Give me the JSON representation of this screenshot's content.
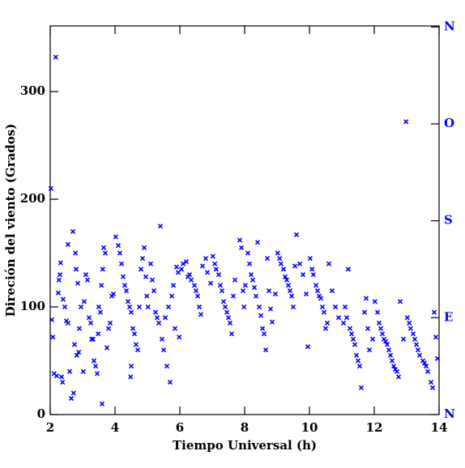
{
  "chart_data": {
    "type": "scatter",
    "xlabel": "Tiempo Universal (h)",
    "ylabel": "Direción del viento (Grados)",
    "color": "#0000ff",
    "marker": "x",
    "xlim": [
      2,
      14
    ],
    "ylim": [
      0,
      361
    ],
    "xticks": [
      2,
      4,
      6,
      8,
      10,
      12,
      14
    ],
    "yticks": [
      0,
      100,
      200,
      300
    ],
    "y2lim": [
      0,
      361
    ],
    "y2ticks": [
      {
        "value": 0,
        "label": "N"
      },
      {
        "value": 90,
        "label": "E"
      },
      {
        "value": 180,
        "label": "S"
      },
      {
        "value": 270,
        "label": "O"
      },
      {
        "value": 360,
        "label": "N"
      }
    ],
    "x": [
      2.02,
      2.17,
      2.05,
      2.08,
      2.12,
      2.2,
      2.25,
      2.3,
      2.32,
      2.27,
      2.4,
      2.45,
      2.5,
      2.55,
      2.35,
      2.38,
      2.6,
      2.65,
      2.72,
      2.55,
      2.78,
      2.7,
      2.8,
      2.85,
      2.9,
      2.75,
      2.82,
      2.88,
      2.95,
      3.02,
      3.05,
      3.1,
      3.15,
      3.2,
      3.25,
      3.28,
      3.32,
      3.35,
      3.4,
      3.45,
      3.48,
      3.5,
      3.55,
      3.58,
      3.62,
      3.65,
      3.7,
      3.6,
      3.75,
      3.8,
      3.85,
      3.9,
      3.95,
      4.02,
      4.1,
      4.15,
      4.2,
      4.25,
      4.3,
      4.35,
      4.4,
      4.45,
      4.5,
      4.55,
      4.6,
      4.65,
      4.5,
      4.48,
      4.7,
      4.75,
      4.8,
      4.85,
      4.9,
      4.95,
      4.98,
      5.02,
      5.4,
      5.1,
      5.15,
      5.2,
      5.25,
      5.3,
      5.35,
      5.45,
      5.5,
      5.7,
      5.6,
      5.65,
      5.75,
      5.8,
      5.9,
      5.95,
      5.55,
      5.85,
      5.98,
      6.05,
      6.1,
      6.2,
      6.25,
      6.3,
      6.35,
      6.45,
      6.5,
      6.55,
      6.6,
      6.65,
      6.7,
      6.8,
      6.85,
      6.95,
      7.02,
      7.08,
      7.12,
      7.2,
      7.25,
      7.3,
      7.35,
      7.4,
      7.45,
      7.5,
      7.55,
      7.6,
      7.65,
      7.7,
      7.85,
      7.9,
      7.95,
      7.98,
      8.02,
      8.4,
      8.1,
      8.15,
      8.2,
      8.25,
      8.3,
      8.35,
      8.45,
      8.5,
      8.55,
      8.6,
      8.65,
      8.7,
      8.75,
      8.8,
      8.85,
      8.95,
      9.02,
      9.08,
      9.12,
      9.2,
      9.25,
      9.3,
      9.35,
      9.4,
      9.45,
      9.5,
      9.55,
      9.6,
      9.7,
      9.8,
      9.9,
      9.95,
      10.02,
      10.08,
      10.12,
      10.2,
      10.25,
      10.3,
      10.35,
      10.4,
      10.45,
      10.5,
      10.55,
      10.6,
      10.7,
      10.8,
      10.9,
      11.05,
      11.1,
      11.15,
      11.2,
      11.25,
      11.3,
      11.35,
      11.4,
      11.45,
      11.5,
      11.55,
      11.6,
      11.7,
      11.75,
      11.8,
      11.85,
      11.95,
      12.02,
      12.1,
      12.15,
      12.2,
      12.25,
      12.3,
      12.35,
      12.4,
      12.45,
      12.5,
      12.55,
      12.6,
      12.65,
      12.7,
      12.75,
      12.8,
      12.9,
      12.98,
      13.02,
      13.08,
      13.12,
      13.2,
      13.25,
      13.3,
      13.35,
      13.4,
      13.5,
      13.55,
      13.6,
      13.65,
      13.75,
      13.8,
      13.85,
      13.9,
      13.95
    ],
    "values": [
      210,
      332,
      88,
      72,
      38,
      36,
      113,
      130,
      141,
      125,
      107,
      100,
      87,
      85,
      35,
      30,
      40,
      15,
      20,
      158,
      150,
      170,
      135,
      122,
      80,
      65,
      55,
      58,
      100,
      40,
      105,
      130,
      125,
      90,
      85,
      70,
      70,
      50,
      45,
      38,
      75,
      100,
      95,
      120,
      135,
      155,
      150,
      10,
      62,
      80,
      85,
      110,
      112,
      165,
      157,
      150,
      140,
      128,
      120,
      115,
      105,
      100,
      95,
      80,
      75,
      65,
      45,
      35,
      60,
      100,
      135,
      145,
      155,
      128,
      110,
      100,
      175,
      140,
      125,
      115,
      95,
      90,
      85,
      70,
      60,
      30,
      45,
      100,
      110,
      120,
      137,
      132,
      90,
      80,
      72,
      135,
      140,
      142,
      128,
      130,
      125,
      120,
      115,
      110,
      100,
      93,
      138,
      145,
      132,
      122,
      147,
      140,
      135,
      130,
      120,
      115,
      105,
      100,
      95,
      90,
      85,
      75,
      110,
      125,
      162,
      155,
      115,
      100,
      120,
      160,
      150,
      140,
      130,
      125,
      118,
      110,
      100,
      92,
      80,
      75,
      60,
      145,
      115,
      98,
      86,
      112,
      150,
      145,
      140,
      135,
      128,
      125,
      120,
      115,
      110,
      100,
      138,
      167,
      140,
      130,
      112,
      63,
      145,
      135,
      130,
      120,
      115,
      110,
      108,
      100,
      95,
      80,
      85,
      140,
      115,
      100,
      90,
      85,
      100,
      90,
      135,
      80,
      75,
      70,
      65,
      55,
      50,
      45,
      25,
      95,
      108,
      80,
      60,
      70,
      105,
      95,
      85,
      80,
      75,
      70,
      68,
      65,
      60,
      55,
      50,
      45,
      42,
      40,
      35,
      105,
      70,
      272,
      90,
      85,
      80,
      75,
      70,
      65,
      60,
      55,
      50,
      48,
      45,
      40,
      30,
      25,
      95,
      72,
      52
    ]
  }
}
